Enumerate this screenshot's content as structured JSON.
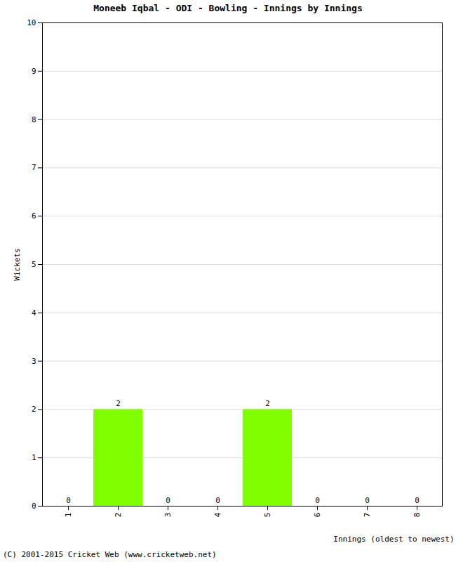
{
  "chart_data": {
    "type": "bar",
    "title": "Moneeb Iqbal - ODI - Bowling - Innings by Innings",
    "x_label": "Innings (oldest to newest)",
    "y_label": "Wickets",
    "categories": [
      "1",
      "2",
      "3",
      "4",
      "5",
      "6",
      "7",
      "8"
    ],
    "values": [
      0,
      2,
      0,
      0,
      2,
      0,
      0,
      0
    ],
    "color": "#80ff00",
    "ylim": [
      0,
      10
    ],
    "yticks": [
      0,
      1,
      2,
      3,
      4,
      5,
      6,
      7,
      8,
      9,
      10
    ],
    "grid": true,
    "data_labels": true,
    "annotations": [
      "(C) 2001-2015 Cricket Web (www.cricketweb.net)"
    ]
  }
}
